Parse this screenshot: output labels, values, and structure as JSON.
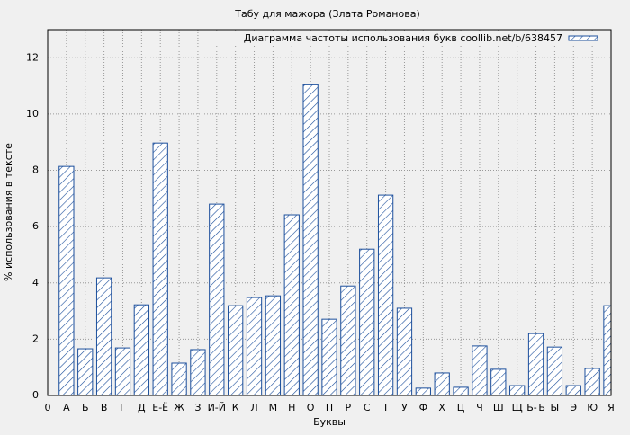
{
  "chart_data": {
    "type": "bar",
    "title": "Табу для мажора (Злата Романова)",
    "x_label": "Буквы",
    "y_label": "% использования в тексте",
    "x": [
      1,
      2,
      3,
      4,
      5,
      6,
      7,
      8,
      9,
      10,
      11,
      12,
      13,
      14,
      15,
      16,
      17,
      18,
      19,
      20,
      21,
      22,
      23,
      24,
      25,
      26,
      27,
      28,
      29,
      30
    ],
    "series": [
      {
        "name": "Диаграмма частоты использования букв coollib.net/b/638457",
        "color": "#1c4f9c",
        "values": [
          8.14,
          1.66,
          4.18,
          1.69,
          3.22,
          8.97,
          1.15,
          1.63,
          6.8,
          3.19,
          3.48,
          3.54,
          6.42,
          11.04,
          2.71,
          3.89,
          5.2,
          7.12,
          3.1,
          0.26,
          0.8,
          0.29,
          1.76,
          0.93,
          0.35,
          2.2,
          1.72,
          0.35,
          0.96,
          3.19
        ]
      }
    ],
    "xlim": [
      0,
      30
    ],
    "xticks": [
      0,
      {
        "value": 1,
        "label": "А"
      },
      {
        "value": 2,
        "label": "Б"
      },
      {
        "value": 3,
        "label": "В"
      },
      {
        "value": 4,
        "label": "Г"
      },
      {
        "value": 5,
        "label": "Д"
      },
      {
        "value": 6,
        "label": "Е-Ё"
      },
      {
        "value": 7,
        "label": "Ж"
      },
      {
        "value": 8,
        "label": "З"
      },
      {
        "value": 9,
        "label": "И-Й"
      },
      {
        "value": 10,
        "label": "К"
      },
      {
        "value": 11,
        "label": "Л"
      },
      {
        "value": 12,
        "label": "М"
      },
      {
        "value": 13,
        "label": "Н"
      },
      {
        "value": 14,
        "label": "О"
      },
      {
        "value": 15,
        "label": "П"
      },
      {
        "value": 16,
        "label": "Р"
      },
      {
        "value": 17,
        "label": "С"
      },
      {
        "value": 18,
        "label": "Т"
      },
      {
        "value": 19,
        "label": "У"
      },
      {
        "value": 20,
        "label": "Ф"
      },
      {
        "value": 21,
        "label": "Х"
      },
      {
        "value": 22,
        "label": "Ц"
      },
      {
        "value": 23,
        "label": "Ч"
      },
      {
        "value": 24,
        "label": "Ш"
      },
      {
        "value": 25,
        "label": "Щ"
      },
      {
        "value": 26,
        "label": "Ь-Ъ"
      },
      {
        "value": 27,
        "label": "Ы"
      },
      {
        "value": 28,
        "label": "Э"
      },
      {
        "value": 29,
        "label": "Ю"
      },
      {
        "value": 30,
        "label": "Я"
      }
    ],
    "ylim": [
      0,
      13
    ],
    "yticks": [
      0,
      2,
      4,
      6,
      8,
      10,
      12
    ],
    "grid": true,
    "legend": "top-right"
  }
}
